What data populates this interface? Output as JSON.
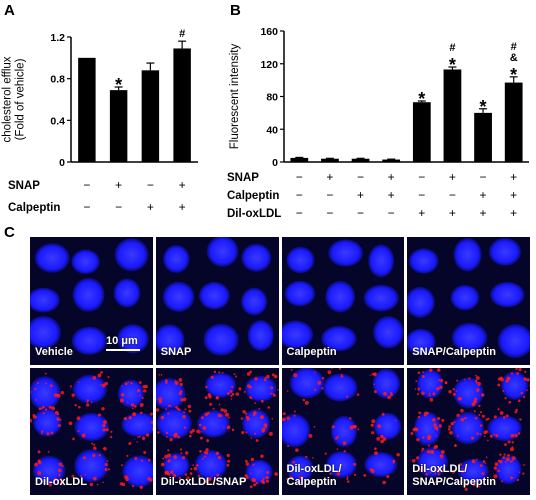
{
  "panels": {
    "a_letter": "A",
    "b_letter": "B",
    "c_letter": "C"
  },
  "row_labels": {
    "snap": "SNAP",
    "calpeptin": "Calpeptin",
    "diloxldl": "Dil-oxLDL"
  },
  "colors": {
    "bar": "#000000",
    "nucleus": "#1a1aff",
    "lipid": "#ff1a1a",
    "background": "#05052a"
  },
  "chart_data": [
    {
      "type": "bar",
      "panel": "A",
      "xlabel": "",
      "ylabel": "cholesterol efflux\n(Fold of vehicle)",
      "ylim": [
        0,
        1.2
      ],
      "yticks": [
        "0",
        "0.4",
        "0.8",
        "1.2"
      ],
      "conditions": {
        "SNAP": [
          "−",
          "+",
          "−",
          "+"
        ],
        "Calpeptin": [
          "−",
          "−",
          "+",
          "+"
        ]
      },
      "values": [
        1.0,
        0.69,
        0.88,
        1.09
      ],
      "errors": [
        0.0,
        0.03,
        0.07,
        0.07
      ],
      "annotations": [
        "",
        "*",
        "",
        "#"
      ]
    },
    {
      "type": "bar",
      "panel": "B",
      "xlabel": "",
      "ylabel": "Fluorescent intensity",
      "ylim": [
        0,
        160
      ],
      "yticks": [
        "0",
        "40",
        "80",
        "120",
        "160"
      ],
      "conditions": {
        "SNAP": [
          "−",
          "+",
          "−",
          "+",
          "−",
          "+",
          "−",
          "+"
        ],
        "Calpeptin": [
          "−",
          "−",
          "+",
          "+",
          "−",
          "−",
          "+",
          "+"
        ],
        "Dil-oxLDL": [
          "−",
          "−",
          "−",
          "−",
          "+",
          "+",
          "+",
          "+"
        ]
      },
      "values": [
        5,
        4,
        4,
        3,
        73,
        113,
        60,
        97
      ],
      "errors": [
        0.6,
        0.5,
        0.5,
        0.5,
        1.5,
        3,
        5,
        7
      ],
      "annotations": [
        "",
        "",
        "",
        "",
        "*",
        "#\n*",
        "*",
        "#\n&\n*"
      ]
    }
  ],
  "micrographs": {
    "scale_bar": "10 μm",
    "labels": [
      "Vehicle",
      "SNAP",
      "Calpeptin",
      "SNAP/Calpeptin",
      "Dil-oxLDL",
      "Dil-oxLDL/SNAP",
      "Dil-oxLDL/\nCalpeptin",
      "Dil-oxLDL/\nSNAP/Calpeptin"
    ]
  }
}
